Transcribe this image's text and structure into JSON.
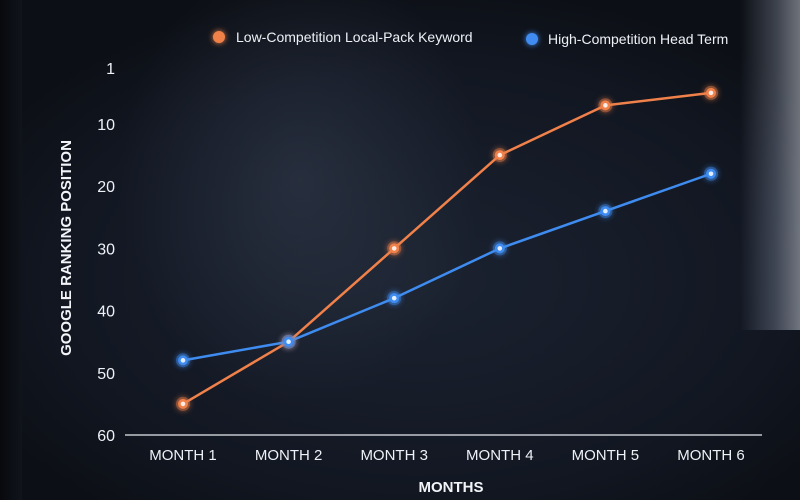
{
  "chart_data": {
    "type": "line",
    "xlabel": "MONTHS",
    "ylabel": "GOOGLE RANKING POSITION",
    "categories": [
      "MONTH 1",
      "MONTH 2",
      "MONTH 3",
      "MONTH 4",
      "MONTH 5",
      "MONTH 6"
    ],
    "y_ticks": [
      1,
      10,
      20,
      30,
      40,
      50,
      60
    ],
    "ylim": [
      60,
      1
    ],
    "y_inverted": true,
    "grid": false,
    "legend_position": "top-right",
    "series": [
      {
        "name": "Low-Competition Local-Pack Keyword",
        "color": "#f0814a",
        "values": [
          55,
          45,
          30,
          15,
          7,
          5
        ]
      },
      {
        "name": "High-Competition Head Term",
        "color": "#3f8cf0",
        "values": [
          48,
          45,
          38,
          30,
          24,
          18
        ]
      }
    ]
  }
}
